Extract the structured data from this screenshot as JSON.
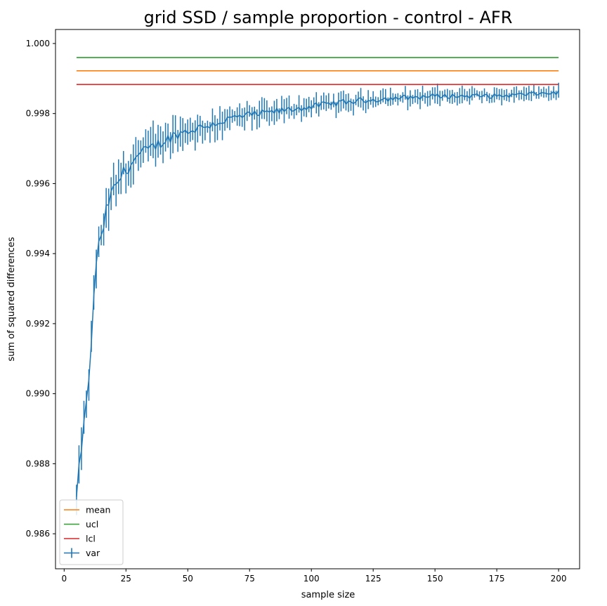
{
  "chart_data": {
    "type": "line",
    "title": "grid SSD / sample proportion - control - AFR",
    "xlabel": "sample size",
    "ylabel": "sum of squared differences",
    "xlim": [
      -3.5,
      208.5
    ],
    "ylim": [
      0.985,
      1.0004
    ],
    "xticks": [
      0,
      25,
      50,
      75,
      100,
      125,
      150,
      175,
      200
    ],
    "xtick_labels": [
      "0",
      "25",
      "50",
      "75",
      "100",
      "125",
      "150",
      "175",
      "200"
    ],
    "yticks": [
      0.986,
      0.988,
      0.99,
      0.992,
      0.994,
      0.996,
      0.998,
      1.0
    ],
    "ytick_labels": [
      "0.986",
      "0.988",
      "0.990",
      "0.992",
      "0.994",
      "0.996",
      "0.998",
      "1.000"
    ],
    "legend_position": "bottom-left",
    "series": [
      {
        "name": "mean",
        "color": "#ff7f0e",
        "kind": "hline",
        "y": 0.99922,
        "x": [
          5,
          200
        ]
      },
      {
        "name": "ucl",
        "color": "#2ca02c",
        "kind": "hline",
        "y": 0.9996,
        "x": [
          5,
          200
        ]
      },
      {
        "name": "lcl",
        "color": "#d62728",
        "kind": "hline",
        "y": 0.99883,
        "x": [
          5,
          200
        ]
      },
      {
        "name": "var",
        "color": "#1f77b4",
        "kind": "errorbar",
        "x_start": 5,
        "x_end": 200,
        "points": [
          [
            5,
            0.987
          ],
          [
            6,
            0.9878
          ],
          [
            7,
            0.9885
          ],
          [
            8,
            0.9891
          ],
          [
            9,
            0.9897
          ],
          [
            10,
            0.9905
          ],
          [
            11,
            0.9913
          ],
          [
            12,
            0.9928
          ],
          [
            13,
            0.9938
          ],
          [
            14,
            0.9942
          ],
          [
            15,
            0.9944
          ],
          [
            16,
            0.9948
          ],
          [
            17,
            0.9952
          ],
          [
            18,
            0.9955
          ],
          [
            20,
            0.9958
          ],
          [
            22,
            0.9961
          ],
          [
            25,
            0.9964
          ],
          [
            30,
            0.9968
          ],
          [
            35,
            0.997
          ],
          [
            40,
            0.9972
          ],
          [
            45,
            0.9974
          ],
          [
            50,
            0.9975
          ],
          [
            60,
            0.9977
          ],
          [
            70,
            0.9979
          ],
          [
            80,
            0.998
          ],
          [
            90,
            0.9981
          ],
          [
            100,
            0.9982
          ],
          [
            110,
            0.9983
          ],
          [
            125,
            0.9984
          ],
          [
            150,
            0.9985
          ],
          [
            175,
            0.9985
          ],
          [
            200,
            0.9986
          ]
        ],
        "err_scale": [
          [
            5,
            0.0006
          ],
          [
            10,
            0.0006
          ],
          [
            15,
            0.00065
          ],
          [
            20,
            0.0007
          ],
          [
            30,
            0.0006
          ],
          [
            50,
            0.00045
          ],
          [
            100,
            0.0003
          ],
          [
            150,
            0.00025
          ],
          [
            200,
            0.0002
          ]
        ]
      }
    ]
  }
}
